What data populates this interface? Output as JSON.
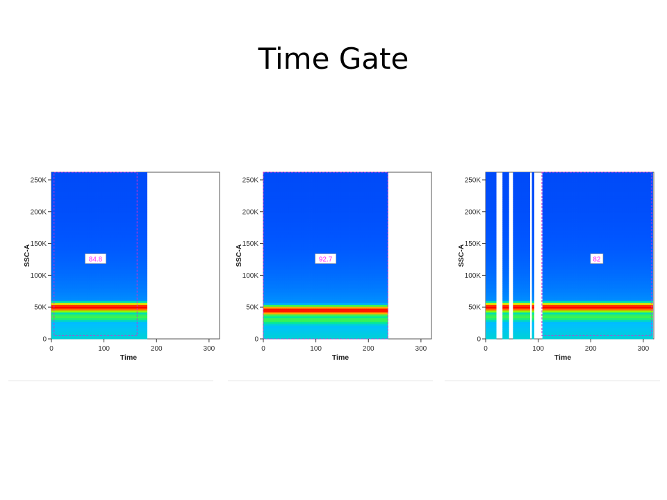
{
  "slide": {
    "title": "Time Gate"
  },
  "colors": {
    "density_scale": [
      "#0000c8",
      "#0055ff",
      "#00c0ff",
      "#00e8a0",
      "#7cff00",
      "#ffe000",
      "#ff7000",
      "#ff0000"
    ],
    "gate": "#cc33cc",
    "gate_label": "#ff33ff"
  },
  "chart_data": [
    {
      "type": "scatter",
      "title": "",
      "xlabel": "Time",
      "ylabel": "SSC-A",
      "xlim": [
        0,
        320
      ],
      "ylim": [
        0,
        262000
      ],
      "x_ticks": [
        0,
        100,
        200,
        300
      ],
      "y_ticks": [
        0,
        50000,
        100000,
        150000,
        200000,
        250000
      ],
      "y_tick_labels": [
        "0",
        "50K",
        "100K",
        "150K",
        "200K",
        "250K"
      ],
      "grid": false,
      "data_extent": {
        "x": [
          0,
          182
        ],
        "y": [
          0,
          262000
        ]
      },
      "density_peak_y": 50000,
      "empty_time_ranges": [],
      "gate": {
        "label": "84.8",
        "x": [
          5,
          163
        ],
        "y": [
          5000,
          262000
        ]
      }
    },
    {
      "type": "scatter",
      "title": "",
      "xlabel": "Time",
      "ylabel": "SSC-A",
      "xlim": [
        0,
        320
      ],
      "ylim": [
        0,
        262000
      ],
      "x_ticks": [
        0,
        100,
        200,
        300
      ],
      "y_ticks": [
        0,
        50000,
        100000,
        150000,
        200000,
        250000
      ],
      "y_tick_labels": [
        "0",
        "50K",
        "100K",
        "150K",
        "200K",
        "250K"
      ],
      "grid": false,
      "data_extent": {
        "x": [
          0,
          237
        ],
        "y": [
          0,
          262000
        ]
      },
      "density_peak_y": 45000,
      "empty_time_ranges": [],
      "gate": {
        "label": "92.7",
        "x": [
          0,
          237
        ],
        "y": [
          0,
          262000
        ]
      }
    },
    {
      "type": "scatter",
      "title": "",
      "xlabel": "Time",
      "ylabel": "SSC-A",
      "xlim": [
        0,
        320
      ],
      "ylim": [
        0,
        262000
      ],
      "x_ticks": [
        0,
        100,
        200,
        300
      ],
      "y_ticks": [
        0,
        50000,
        100000,
        150000,
        200000,
        250000
      ],
      "y_tick_labels": [
        "0",
        "50K",
        "100K",
        "150K",
        "200K",
        "250K"
      ],
      "grid": false,
      "data_extent": {
        "x": [
          0,
          318
        ],
        "y": [
          0,
          262000
        ]
      },
      "density_peak_y": 50000,
      "empty_time_ranges": [
        [
          19,
          31
        ],
        [
          46,
          53
        ],
        [
          84,
          89
        ],
        [
          93,
          107
        ]
      ],
      "gate": {
        "label": "82",
        "x": [
          107,
          316
        ],
        "y": [
          5000,
          262000
        ]
      }
    }
  ]
}
